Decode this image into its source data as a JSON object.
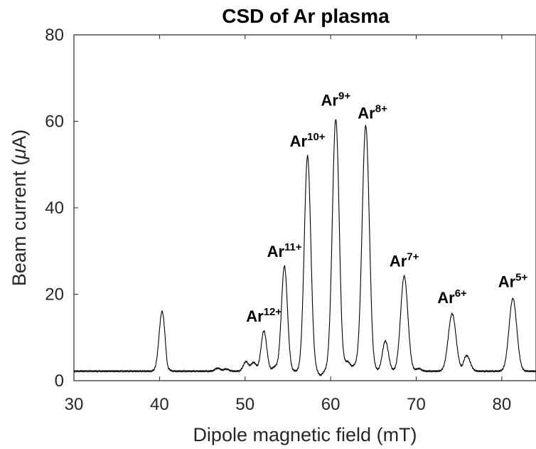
{
  "chart_data": {
    "type": "line",
    "title": "CSD of Ar plasma",
    "xlabel": "Dipole magnetic field (mT)",
    "ylabel_prefix": "Beam current (",
    "ylabel_symbol": "μ",
    "ylabel_suffix": "A)",
    "xlim": [
      30,
      84
    ],
    "ylim": [
      0,
      80
    ],
    "xticks": [
      30,
      40,
      50,
      60,
      70,
      80
    ],
    "yticks": [
      0,
      20,
      40,
      60,
      80
    ],
    "grid": false,
    "line_color": "#000000",
    "baseline": 2.2,
    "peaks": [
      {
        "x": 40.3,
        "y": 16,
        "w": 0.35
      },
      {
        "x": 46.8,
        "y": 2.9,
        "w": 0.3
      },
      {
        "x": 47.8,
        "y": 2.7,
        "w": 0.3
      },
      {
        "x": 50.1,
        "y": 4.4,
        "w": 0.3
      },
      {
        "x": 51.0,
        "y": 4.2,
        "w": 0.3
      },
      {
        "x": 52.2,
        "y": 11.5,
        "w": 0.33
      },
      {
        "x": 53.5,
        "y": 3.2,
        "w": 0.3
      },
      {
        "x": 54.6,
        "y": 26.5,
        "w": 0.35
      },
      {
        "x": 57.3,
        "y": 52,
        "w": 0.38
      },
      {
        "x": 60.6,
        "y": 60.5,
        "w": 0.4
      },
      {
        "x": 62.0,
        "y": 4.3,
        "w": 0.3
      },
      {
        "x": 62.8,
        "y": 3.3,
        "w": 0.3
      },
      {
        "x": 64.1,
        "y": 59,
        "w": 0.42
      },
      {
        "x": 66.4,
        "y": 9.2,
        "w": 0.35
      },
      {
        "x": 68.6,
        "y": 24.2,
        "w": 0.42
      },
      {
        "x": 70.3,
        "y": 2.8,
        "w": 0.3
      },
      {
        "x": 74.2,
        "y": 15.5,
        "w": 0.45
      },
      {
        "x": 75.9,
        "y": 5.8,
        "w": 0.4
      },
      {
        "x": 81.3,
        "y": 19,
        "w": 0.45
      }
    ],
    "dips": [
      {
        "x": 40.9,
        "y": 1.1,
        "w": 0.15
      },
      {
        "x": 58.8,
        "y": 1.3,
        "w": 0.25
      },
      {
        "x": 61.3,
        "y": 1.0,
        "w": 0.15
      },
      {
        "x": 64.9,
        "y": 1.2,
        "w": 0.15
      },
      {
        "x": 75.3,
        "y": 1.6,
        "w": 0.2
      }
    ],
    "annotations": [
      {
        "base": "Ar",
        "sup": "12+",
        "x": 52.2,
        "y": 13.0
      },
      {
        "base": "Ar",
        "sup": "11+",
        "x": 54.6,
        "y": 28.0
      },
      {
        "base": "Ar",
        "sup": "10+",
        "x": 57.3,
        "y": 53.5
      },
      {
        "base": "Ar",
        "sup": "9+",
        "x": 60.6,
        "y": 63.0
      },
      {
        "base": "Ar",
        "sup": "8+",
        "x": 64.9,
        "y": 60.0
      },
      {
        "base": "Ar",
        "sup": "7+",
        "x": 68.6,
        "y": 25.8
      },
      {
        "base": "Ar",
        "sup": "6+",
        "x": 74.2,
        "y": 17.3
      },
      {
        "base": "Ar",
        "sup": "5+",
        "x": 81.3,
        "y": 21.0
      }
    ]
  }
}
